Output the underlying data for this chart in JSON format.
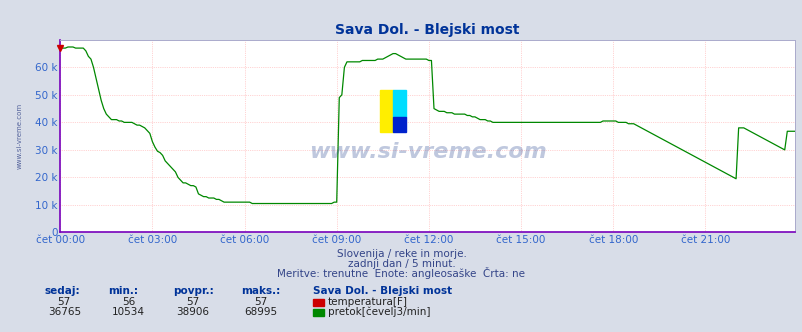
{
  "title": "Sava Dol. - Blejski most",
  "bg_color": "#d8dde8",
  "plot_bg_color": "#ffffff",
  "grid_color": "#ffaaaa",
  "line_color_temp": "#cc0000",
  "line_color_flow": "#008800",
  "x_labels": [
    "čet 00:00",
    "čet 03:00",
    "čet 06:00",
    "čet 09:00",
    "čet 12:00",
    "čet 15:00",
    "čet 18:00",
    "čet 21:00"
  ],
  "x_ticks": [
    0,
    36,
    72,
    108,
    144,
    180,
    216,
    252
  ],
  "y_max": 70000,
  "y_ticks": [
    0,
    10000,
    20000,
    30000,
    40000,
    50000,
    60000
  ],
  "y_labels": [
    "0",
    "10 k",
    "20 k",
    "30 k",
    "40 k",
    "50 k",
    "60 k"
  ],
  "subtitle1": "Slovenija / reke in morje.",
  "subtitle2": "zadnji dan / 5 minut.",
  "subtitle3": "Meritve: trenutne  Enote: angleosaške  Črta: ne",
  "footer_station": "Sava Dol. - Blejski most",
  "footer_headers": [
    "sedaj:",
    "min.:",
    "povpr.:",
    "maks.:"
  ],
  "footer_temp": [
    "57",
    "56",
    "57",
    "57"
  ],
  "footer_flow": [
    "36765",
    "10534",
    "38906",
    "68995"
  ],
  "footer_label_temp": "temperatura[F]",
  "footer_label_flow": "pretok[čevelj3/min]",
  "watermark": "www.si-vreme.com",
  "total_points": 288,
  "flow_data": [
    67000,
    67000,
    67000,
    67400,
    67400,
    67400,
    67000,
    67000,
    67000,
    67000,
    66000,
    64000,
    63000,
    60000,
    56000,
    52000,
    48000,
    45000,
    43000,
    42000,
    41000,
    41000,
    41000,
    40500,
    40500,
    40000,
    40000,
    40000,
    40000,
    39500,
    39000,
    39000,
    38500,
    38000,
    37000,
    36000,
    33000,
    31000,
    29500,
    29000,
    28000,
    26000,
    25000,
    24000,
    23000,
    22000,
    20000,
    19000,
    18000,
    18000,
    17500,
    17000,
    17000,
    16500,
    14000,
    13500,
    13000,
    13000,
    12500,
    12500,
    12500,
    12000,
    12000,
    11500,
    11000,
    11000,
    11000,
    11000,
    11000,
    11000,
    11000,
    11000,
    11000,
    11000,
    11000,
    10500,
    10500,
    10500,
    10500,
    10500,
    10500,
    10500,
    10500,
    10500,
    10500,
    10500,
    10500,
    10500,
    10500,
    10500,
    10500,
    10500,
    10500,
    10500,
    10500,
    10500,
    10500,
    10500,
    10500,
    10500,
    10500,
    10500,
    10500,
    10500,
    10500,
    10500,
    10500,
    11000,
    11000,
    49000,
    50000,
    60000,
    62000,
    62000,
    62000,
    62000,
    62000,
    62000,
    62500,
    62500,
    62500,
    62500,
    62500,
    62500,
    63000,
    63000,
    63000,
    63500,
    64000,
    64500,
    65000,
    65000,
    64500,
    64000,
    63500,
    63000,
    63000,
    63000,
    63000,
    63000,
    63000,
    63000,
    63000,
    63000,
    62500,
    62500,
    45000,
    44500,
    44000,
    44000,
    44000,
    43500,
    43500,
    43500,
    43000,
    43000,
    43000,
    43000,
    43000,
    42500,
    42500,
    42000,
    42000,
    41500,
    41000,
    41000,
    41000,
    40500,
    40500,
    40000,
    40000,
    40000,
    40000,
    40000,
    40000,
    40000,
    40000,
    40000,
    40000,
    40000,
    40000,
    40000,
    40000,
    40000,
    40000,
    40000,
    40000,
    40000,
    40000,
    40000,
    40000,
    40000,
    40000,
    40000,
    40000,
    40000,
    40000,
    40000,
    40000,
    40000,
    40000,
    40000,
    40000,
    40000,
    40000,
    40000,
    40000,
    40000,
    40000,
    40000,
    40000,
    40000,
    40500,
    40500,
    40500,
    40500,
    40500,
    40500,
    40000,
    40000,
    40000,
    40000,
    39500,
    39500,
    39500,
    39000,
    38500,
    38000,
    37500,
    37000,
    36500,
    36000,
    35500,
    35000,
    34500,
    34000,
    33500,
    33000,
    32500,
    32000,
    31500,
    31000,
    30500,
    30000,
    29500,
    29000,
    28500,
    28000,
    27500,
    27000,
    26500,
    26000,
    25500,
    25000,
    24500,
    24000,
    23500,
    23000,
    22500,
    22000,
    21500,
    21000,
    20500,
    20000,
    19500,
    38000,
    38000,
    38000,
    37500,
    37000,
    36500,
    36000,
    35500,
    35000,
    34500,
    34000,
    33500,
    33000,
    32500,
    32000,
    31500,
    31000,
    30500,
    30000,
    36765,
    36765,
    36765,
    36765,
    36765,
    36765,
    36765,
    36765
  ]
}
